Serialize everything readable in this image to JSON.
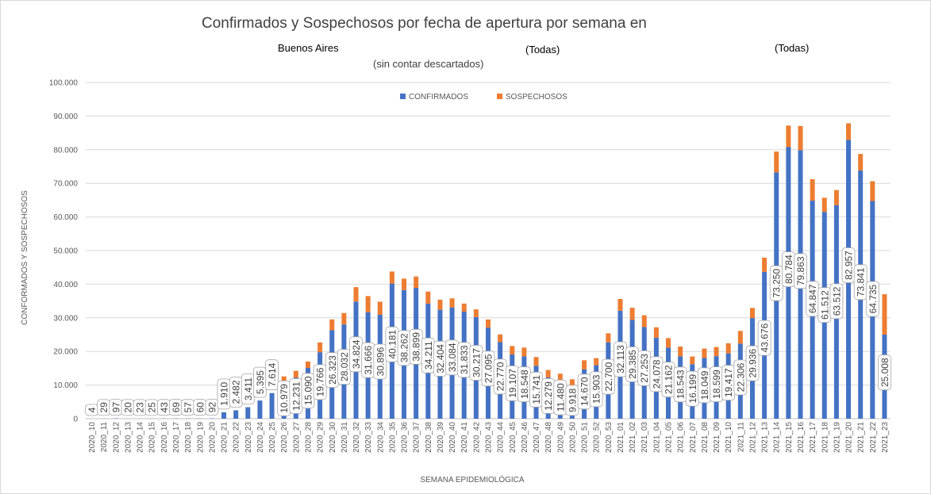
{
  "header": {
    "title": "Confirmados y Sospechosos por fecha de apertura por semana en",
    "region": "Buenos Aires",
    "filter1": "(Todas)",
    "filter2": "(Todas)",
    "note": "(sin contar descartados)"
  },
  "colors": {
    "confirmados": "#4472C4",
    "sospechosos": "#ED7D31",
    "grid": "#d9d9d9"
  },
  "chart_data": {
    "type": "bar",
    "stacked": true,
    "xlabel": "SEMANA EPIDEMIOLÓGICA",
    "ylabel": "CONFORMADOS Y SOSPECHOSOS",
    "ylim": [
      0,
      100000
    ],
    "yticks": [
      "0",
      "10.000",
      "20.000",
      "30.000",
      "40.000",
      "50.000",
      "60.000",
      "70.000",
      "80.000",
      "90.000",
      "100.000"
    ],
    "legend_position": "top-center",
    "grid": true,
    "categories": [
      "2020_10",
      "2020_11",
      "2020_12",
      "2020_13",
      "2020_14",
      "2020_15",
      "2020_16",
      "2020_17",
      "2020_18",
      "2020_19",
      "2020_20",
      "2020_21",
      "2020_22",
      "2020_23",
      "2020_24",
      "2020_25",
      "2020_26",
      "2020_27",
      "2020_28",
      "2020_29",
      "2020_30",
      "2020_31",
      "2020_32",
      "2020_33",
      "2020_34",
      "2020_35",
      "2020_36",
      "2020_37",
      "2020_38",
      "2020_39",
      "2020_40",
      "2020_41",
      "2020_42",
      "2020_43",
      "2020_44",
      "2020_45",
      "2020_46",
      "2020_47",
      "2020_48",
      "2020_49",
      "2020_50",
      "2020_51",
      "2020_52",
      "2020_53",
      "2021_01",
      "2021_02",
      "2021_03",
      "2021_04",
      "2021_05",
      "2021_06",
      "2021_07",
      "2021_08",
      "2021_09",
      "2021_10",
      "2021_11",
      "2021_12",
      "2021_13",
      "2021_14",
      "2021_15",
      "2021_16",
      "2021_17",
      "2021_18",
      "2021_19",
      "2021_20",
      "2021_21",
      "2021_22",
      "2021_23"
    ],
    "series": [
      {
        "name": "CONFIRMADOS",
        "values": [
          4,
          29,
          97,
          20,
          23,
          25,
          43,
          69,
          57,
          60,
          92,
          1910,
          2482,
          3411,
          5395,
          7614,
          10979,
          12231,
          15090,
          19766,
          26323,
          28032,
          34824,
          31666,
          30896,
          40181,
          38262,
          38899,
          34211,
          32404,
          33084,
          31833,
          30217,
          27095,
          22770,
          19107,
          18548,
          15741,
          12279,
          11480,
          9918,
          14670,
          15903,
          22700,
          32113,
          29385,
          27253,
          24078,
          21162,
          18543,
          16199,
          18049,
          18599,
          19417,
          22306,
          29936,
          43676,
          73250,
          80784,
          79863,
          64847,
          61512,
          63512,
          82957,
          73841,
          64735,
          25008
        ],
        "labels": [
          "4",
          "29",
          "97",
          "20",
          "23",
          "25",
          "43",
          "69",
          "57",
          "60",
          "92",
          "1.910",
          "2.482",
          "3.411",
          "5.395",
          "7.614",
          "10.979",
          "12.231",
          "15.090",
          "19.766",
          "26.323",
          "28.032",
          "34.824",
          "31.666",
          "30.896",
          "40.181",
          "38.262",
          "38.899",
          "34.211",
          "32.404",
          "33.084",
          "31.833",
          "30.217",
          "27.095",
          "22.770",
          "19.107",
          "18.548",
          "15.741",
          "12.279",
          "11.480",
          "9.918",
          "14.670",
          "15.903",
          "22.700",
          "32.113",
          "29.385",
          "27.253",
          "24.078",
          "21.162",
          "18.543",
          "16.199",
          "18.049",
          "18.599",
          "19.417",
          "22.306",
          "29.936",
          "43.676",
          "73.250",
          "80.784",
          "79.863",
          "64.847",
          "61.512",
          "63.512",
          "82.957",
          "73.841",
          "64.735",
          "25.008"
        ]
      },
      {
        "name": "SOSPECHOSOS",
        "values": [
          0,
          0,
          0,
          0,
          0,
          0,
          0,
          0,
          0,
          0,
          0,
          0,
          0,
          0,
          0,
          0,
          1600,
          2000,
          1900,
          2900,
          3200,
          3400,
          4300,
          4800,
          3900,
          3600,
          3400,
          3400,
          3600,
          3000,
          2700,
          2400,
          2300,
          2400,
          2300,
          2500,
          2600,
          2600,
          2200,
          1900,
          1800,
          2700,
          2100,
          2700,
          3500,
          3600,
          3500,
          3100,
          2800,
          2900,
          2300,
          2800,
          2700,
          3000,
          3800,
          3000,
          4200,
          6200,
          6400,
          7200,
          6400,
          4200,
          4500,
          4900,
          4900,
          5900,
          12000
        ]
      }
    ]
  }
}
